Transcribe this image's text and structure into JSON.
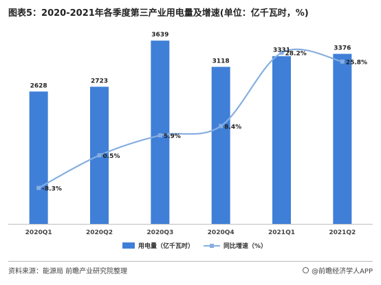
{
  "title": "图表5：2020-2021年各季度第三产业用电量及增速(单位：亿千瓦时，%)",
  "source": "资料来源：能源局 前瞻产业研究院整理",
  "brand": "@前瞻经济学人APP",
  "chart_data": {
    "type": "bar",
    "categories": [
      "2020Q1",
      "2020Q2",
      "2020Q3",
      "2020Q4",
      "2021Q1",
      "2021Q2"
    ],
    "series": [
      {
        "name": "用电量（亿千瓦时）",
        "type": "bar",
        "axis": "left",
        "color": "#3f7fd8",
        "values": [
          2628,
          2723,
          3639,
          3118,
          3331,
          3376
        ],
        "labels": [
          "2628",
          "2723",
          "3639",
          "3118",
          "3331",
          "3376"
        ]
      },
      {
        "name": "同比增速（%）",
        "type": "line",
        "axis": "right",
        "color": "#86aee0",
        "values": [
          -8.3,
          0.5,
          5.9,
          8.4,
          28.2,
          25.8
        ],
        "labels": [
          "-8.3%",
          "0.5%",
          "5.9%",
          "8.4%",
          "28.2%",
          "25.8%"
        ]
      }
    ],
    "ylim_left": [
      0,
      3900
    ],
    "ylim_right": [
      -18,
      35
    ],
    "grid": false,
    "legend_position": "bottom-center"
  }
}
